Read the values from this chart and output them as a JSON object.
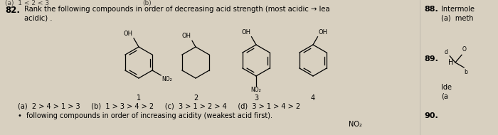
{
  "background_color": "#d8d0c0",
  "question_number": "82.",
  "question_text": "Rank the following compounds in order of decreasing acid strength (most acidic → lea",
  "question_text2": "acidic) .",
  "answer_line1": "(a)  2 > 4 > 1 > 3     (b)  1 > 3 > 4 > 2     (c)  3 > 1 > 2 > 4     (d)  3 > 1 > 4 > 2",
  "next_line": "•  following compounds in order of increasing acidity (weakest acid first).",
  "right_label1": "88.",
  "right_text1": "Intermole",
  "right_text2": "(a)  meth",
  "right_label2": "89.",
  "right_label3": "90.",
  "no2_bottom": "NO₂",
  "compound_nums": [
    "1",
    "2",
    "3",
    "4"
  ]
}
